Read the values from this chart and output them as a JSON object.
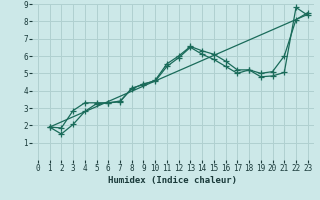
{
  "bg_color": "#cce8e8",
  "grid_color": "#b0d0d0",
  "line_color": "#1a6b5a",
  "xlabel": "Humidex (Indice chaleur)",
  "xlim": [
    -0.5,
    23.5
  ],
  "ylim": [
    0,
    9
  ],
  "xticks": [
    0,
    1,
    2,
    3,
    4,
    5,
    6,
    7,
    8,
    9,
    10,
    11,
    12,
    13,
    14,
    15,
    16,
    17,
    18,
    19,
    20,
    21,
    22,
    23
  ],
  "yticks": [
    1,
    2,
    3,
    4,
    5,
    6,
    7,
    8,
    9
  ],
  "line1_x": [
    1,
    2,
    3,
    4,
    5,
    6,
    7,
    8,
    9,
    10,
    11,
    12,
    13,
    14,
    15,
    16,
    17,
    18,
    19,
    20,
    21,
    22,
    23
  ],
  "line1_y": [
    1.9,
    1.5,
    2.05,
    2.8,
    3.25,
    3.3,
    3.35,
    4.15,
    4.35,
    4.6,
    5.55,
    6.0,
    6.55,
    6.3,
    6.1,
    5.7,
    5.2,
    5.2,
    5.0,
    5.1,
    6.0,
    8.1,
    8.5
  ],
  "line2_x": [
    1,
    2,
    3,
    4,
    5,
    6,
    7,
    8,
    9,
    10,
    11,
    12,
    13,
    14,
    15,
    16,
    17,
    18,
    19,
    20,
    21,
    22,
    23
  ],
  "line2_y": [
    1.9,
    1.85,
    2.85,
    3.3,
    3.3,
    3.3,
    3.4,
    4.1,
    4.4,
    4.55,
    5.4,
    5.9,
    6.5,
    6.1,
    5.8,
    5.4,
    5.0,
    5.2,
    4.8,
    4.85,
    5.05,
    8.8,
    8.35
  ],
  "line3_x": [
    1,
    23
  ],
  "line3_y": [
    1.9,
    8.4
  ],
  "xlabel_fontsize": 6.5,
  "tick_fontsize": 5.5
}
